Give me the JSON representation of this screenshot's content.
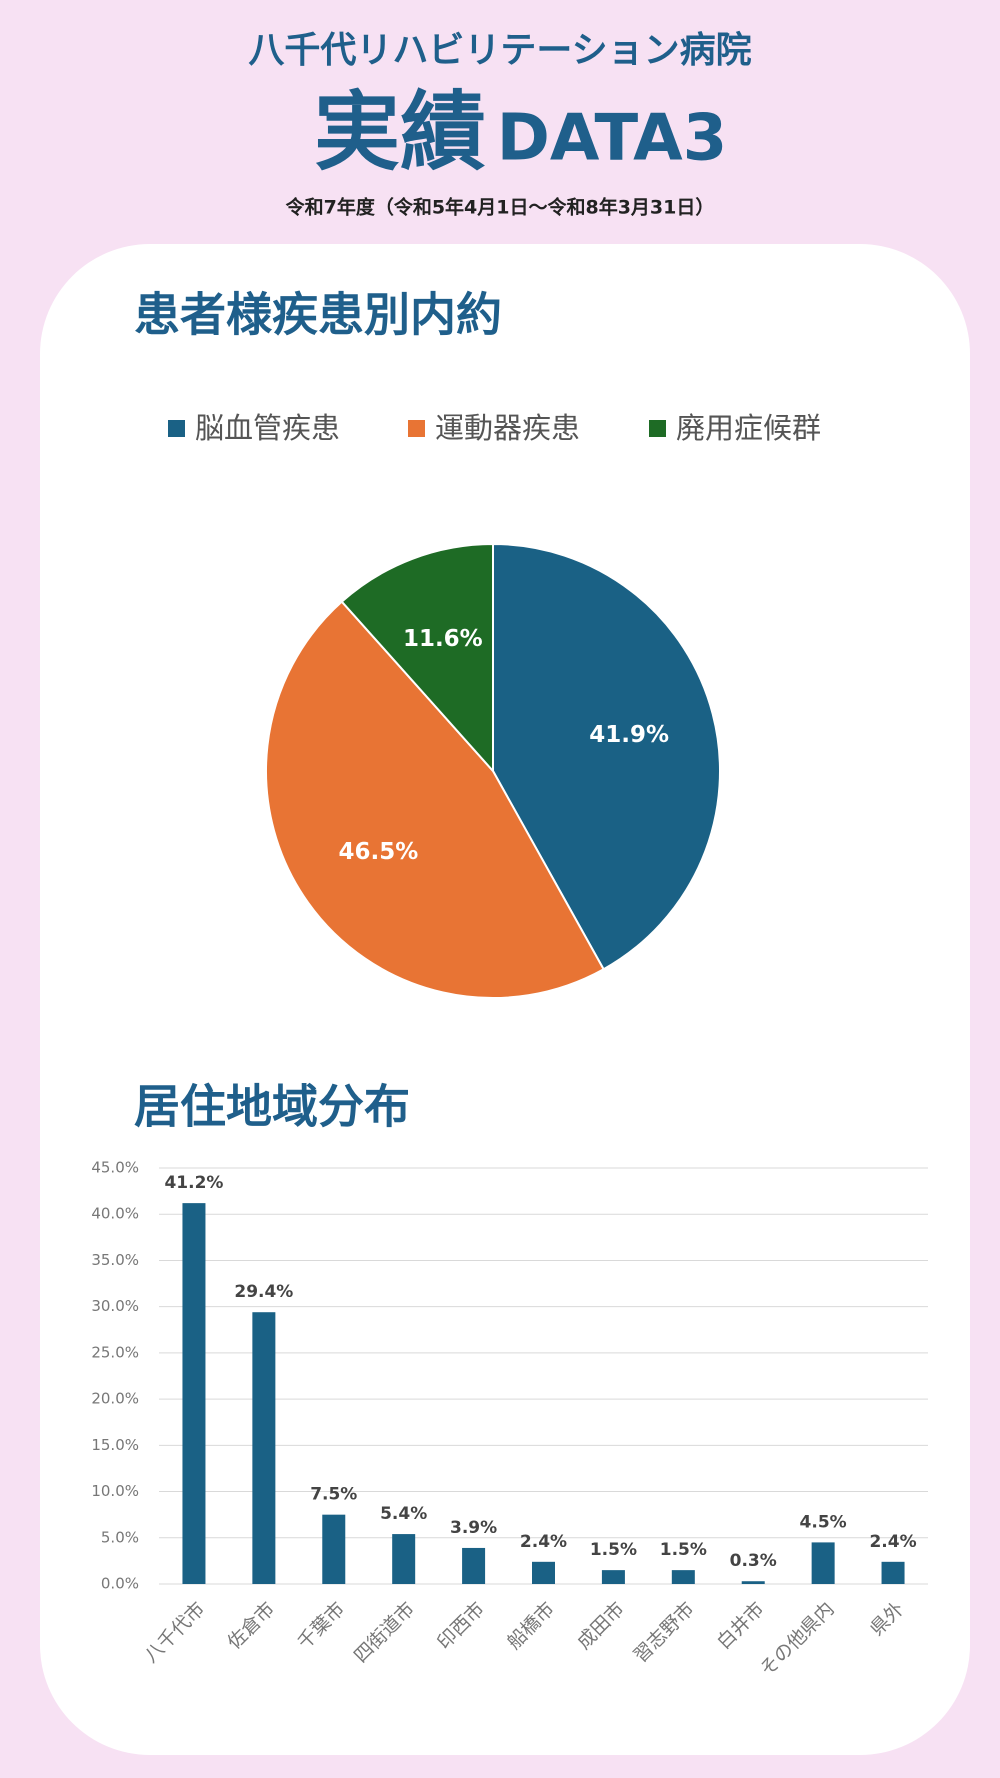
{
  "header": {
    "hospital": "八千代リハビリテーション病院",
    "title": "実績",
    "title_suffix": "DATA3",
    "period": "令和7年度（令和5年4月1日～令和8年3月31日）"
  },
  "chart_data": [
    {
      "type": "pie",
      "title": "患者様疾患別内約",
      "categories": [
        "脳血管疾患",
        "運動器疾患",
        "廃用症候群"
      ],
      "values": [
        41.9,
        46.5,
        11.6
      ],
      "value_labels": [
        "41.9%",
        "46.5%",
        "11.6%"
      ],
      "colors": [
        "#1a6185",
        "#e87434",
        "#1e6b25"
      ],
      "legend": "top"
    },
    {
      "type": "bar",
      "title": "居住地域分布",
      "categories": [
        "八千代市",
        "佐倉市",
        "千葉市",
        "四街道市",
        "印西市",
        "船橋市",
        "成田市",
        "習志野市",
        "白井市",
        "その他県内",
        "県外"
      ],
      "values": [
        41.2,
        29.4,
        7.5,
        5.4,
        3.9,
        2.4,
        1.5,
        1.5,
        0.3,
        4.5,
        2.4
      ],
      "value_labels": [
        "41.2%",
        "29.4%",
        "7.5%",
        "5.4%",
        "3.9%",
        "2.4%",
        "1.5%",
        "1.5%",
        "0.3%",
        "4.5%",
        "2.4%"
      ],
      "color": "#1a6185",
      "ylim": [
        0,
        45
      ],
      "yticks": [
        {
          "value": 0,
          "label": "0.0%"
        },
        {
          "value": 5,
          "label": "5.0%"
        },
        {
          "value": 10,
          "label": "10.0%"
        },
        {
          "value": 15,
          "label": "15.0%"
        },
        {
          "value": 20,
          "label": "20.0%"
        },
        {
          "value": 25,
          "label": "25.0%"
        },
        {
          "value": 30,
          "label": "30.0%"
        },
        {
          "value": 35,
          "label": "35.0%"
        },
        {
          "value": 40,
          "label": "40.0%"
        },
        {
          "value": 45,
          "label": "45.0%"
        }
      ],
      "grid": true
    }
  ]
}
